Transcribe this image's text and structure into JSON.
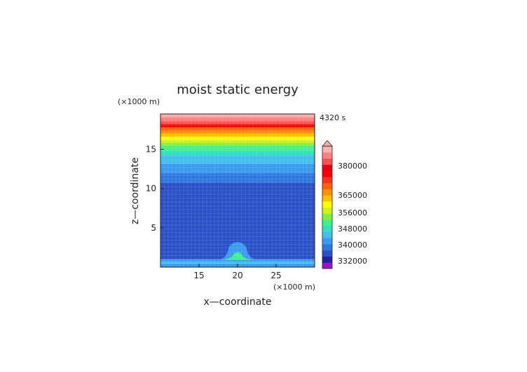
{
  "chart_data": {
    "type": "heatmap",
    "title": "moist static energy",
    "xlabel": "x—coordinate",
    "ylabel": "z—coordinate",
    "x_unit": "(×1000 m)",
    "y_unit": "(×1000 m)",
    "time_label": "4320 s",
    "xlim": [
      10,
      30
    ],
    "ylim": [
      0,
      19.5
    ],
    "x_ticks": [
      "15",
      "20",
      "25"
    ],
    "y_ticks": [
      "5",
      "10",
      "15"
    ],
    "grid": true,
    "colorbar": {
      "labels": [
        "380000",
        "365000",
        "356000",
        "348000",
        "340000",
        "332000"
      ],
      "colors": [
        "#a010c8",
        "#2020a0",
        "#2a50c8",
        "#2c78e0",
        "#3a9af0",
        "#40bff0",
        "#30e0c0",
        "#40f090",
        "#80f040",
        "#d0f020",
        "#ffff00",
        "#ffc000",
        "#ff9000",
        "#ff6010",
        "#ff3020",
        "#ff0000",
        "#e80010",
        "#ff5050",
        "#ff8080",
        "#ffb0b0"
      ]
    },
    "levels_by_height": [
      {
        "z": [
          0.0,
          0.4
        ],
        "color": "#3a9af0"
      },
      {
        "z": [
          0.4,
          0.7
        ],
        "color": "#40bff0"
      },
      {
        "z": [
          0.7,
          1.0
        ],
        "color": "#3a9af0"
      },
      {
        "z": [
          1.0,
          10.8
        ],
        "color": "#2a50c8"
      },
      {
        "z": [
          10.8,
          12.0
        ],
        "color": "#2c78e0"
      },
      {
        "z": [
          12.0,
          13.2
        ],
        "color": "#3a9af0"
      },
      {
        "z": [
          13.2,
          14.2
        ],
        "color": "#40bff0"
      },
      {
        "z": [
          14.2,
          14.8
        ],
        "color": "#30e0c0"
      },
      {
        "z": [
          14.8,
          15.4
        ],
        "color": "#40f090"
      },
      {
        "z": [
          15.4,
          15.8
        ],
        "color": "#80f040"
      },
      {
        "z": [
          15.8,
          16.2
        ],
        "color": "#d0f020"
      },
      {
        "z": [
          16.2,
          16.6
        ],
        "color": "#ffff00"
      },
      {
        "z": [
          16.6,
          17.0
        ],
        "color": "#ffc000"
      },
      {
        "z": [
          17.0,
          17.4
        ],
        "color": "#ff9000"
      },
      {
        "z": [
          17.4,
          17.8
        ],
        "color": "#ff6010"
      },
      {
        "z": [
          17.8,
          18.2
        ],
        "color": "#ff0000"
      },
      {
        "z": [
          18.2,
          18.6
        ],
        "color": "#ff5050"
      },
      {
        "z": [
          18.6,
          19.1
        ],
        "color": "#ff8080"
      },
      {
        "z": [
          19.1,
          19.5
        ],
        "color": "#ffb0b0"
      }
    ],
    "bubble": {
      "x_center": 20,
      "z_center": 1.0,
      "x_half_width": 2.5,
      "z_height": 2.3,
      "outer_color": "#3a9af0",
      "inner_color": "#40f090"
    }
  }
}
